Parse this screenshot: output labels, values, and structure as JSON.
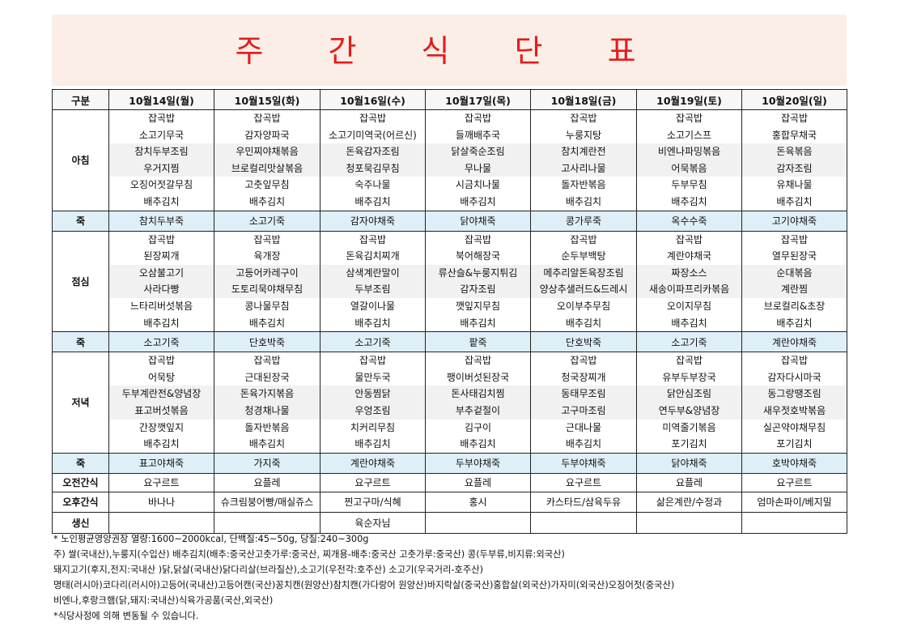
{
  "title": "주 간 식 단 표",
  "header": {
    "label": "구분",
    "days": [
      "10월14일(월)",
      "10월15일(화)",
      "10월16일(수)",
      "10월17일(목)",
      "10월18일(금)",
      "10월19일(토)",
      "10월20일(일)"
    ]
  },
  "breakfast": {
    "label": "아침",
    "days": [
      [
        "잡곡밥",
        "소고기무국",
        "참치두부조림",
        "우거지찜",
        "오징어젓갈무침",
        "배추김치"
      ],
      [
        "잡곡밥",
        "감자양파국",
        "우민찌야채볶음",
        "브로컬리맛살볶음",
        "고춧잎무침",
        "배추김치"
      ],
      [
        "잡곡밥",
        "소고기미역국(어르신)",
        "돈육감자조림",
        "청포묵김무침",
        "숙주나물",
        "배추김치"
      ],
      [
        "잡곡밥",
        "들깨배추국",
        "닭살죽순조림",
        "무나물",
        "시금치나물",
        "배추김치"
      ],
      [
        "잡곡밥",
        "누룽지탕",
        "참치계란전",
        "고사리나물",
        "돌자반볶음",
        "배추김치"
      ],
      [
        "잡곡밥",
        "소고기스프",
        "비엔나파밍볶음",
        "어묵볶음",
        "두부무침",
        "배추김치"
      ],
      [
        "잡곡밥",
        "홍합무채국",
        "돈육볶음",
        "감자조림",
        "유채나물",
        "배추김치"
      ]
    ]
  },
  "juk1": {
    "label": "죽",
    "days": [
      "참치두부죽",
      "소고기죽",
      "감자야채죽",
      "닭야채죽",
      "콩가루죽",
      "옥수수죽",
      "고기야채죽"
    ]
  },
  "lunch": {
    "label": "점심",
    "days": [
      [
        "잡곡밥",
        "된장찌개",
        "오삼불고기",
        "사라다빵",
        "느타리버섯볶음",
        "배추김치"
      ],
      [
        "잡곡밥",
        "육개장",
        "고등어카레구이",
        "도토리묵야채무침",
        "콩나물무침",
        "배추김치"
      ],
      [
        "잡곡밥",
        "돈육김치찌개",
        "삼색계란말이",
        "두부조림",
        "열갈이나물",
        "배추김치"
      ],
      [
        "잡곡밥",
        "북어해장국",
        "류산슬&누룽지튀김",
        "감자조림",
        "깻잎지무침",
        "배추김치"
      ],
      [
        "잡곡밥",
        "순두부백탕",
        "메추리알돈육장조림",
        "양상추샐러드&드레시",
        "오이부추무침",
        "배추김치"
      ],
      [
        "잡곡밥",
        "계란야채국",
        "짜장소스",
        "새송이파프리카볶음",
        "오이지무침",
        "배추김치"
      ],
      [
        "잡곡밥",
        "열무된장국",
        "순대볶음",
        "계란찜",
        "브로컬리&초장",
        "배추김치"
      ]
    ]
  },
  "juk2": {
    "label": "죽",
    "days": [
      "소고기죽",
      "단호박죽",
      "소고기죽",
      "팥죽",
      "단호박죽",
      "소고기죽",
      "계란야채죽"
    ]
  },
  "dinner": {
    "label": "저녁",
    "days": [
      [
        "잡곡밥",
        "어묵탕",
        "두부계란전&양념장",
        "표고버섯볶음",
        "간장깻잎지",
        "배추김치"
      ],
      [
        "잡곡밥",
        "근대된장국",
        "돈육가지볶음",
        "청경채나물",
        "돌자반볶음",
        "배추김치"
      ],
      [
        "잡곡밥",
        "물만두국",
        "안동찜닭",
        "우엉조림",
        "치커리무침",
        "배추김치"
      ],
      [
        "잡곡밥",
        "팽이버섯된장국",
        "돈사태김치찜",
        "부추겉절이",
        "김구이",
        "배추김치"
      ],
      [
        "잡곡밥",
        "청국장찌개",
        "동태무조림",
        "고구마조림",
        "근대나물",
        "배추김치"
      ],
      [
        "잡곡밥",
        "유부두부장국",
        "닭안심조림",
        "연두부&양념장",
        "미역줄기볶음",
        "포기김치"
      ],
      [
        "잡곡밥",
        "감자다시마국",
        "동그랑땡조림",
        "새우젓호박볶음",
        "실곤약야채무침",
        "포기김치"
      ]
    ]
  },
  "juk3": {
    "label": "죽",
    "days": [
      "표고야채죽",
      "가지죽",
      "계란야채죽",
      "두부야채죽",
      "두부야채죽",
      "닭야채죽",
      "호박야채죽"
    ]
  },
  "am_snack": {
    "label": "오전간식",
    "days": [
      "요구르트",
      "요플레",
      "요구르트",
      "요플레",
      "요구르트",
      "요플레",
      "요구르트"
    ]
  },
  "pm_snack": {
    "label": "오후간식",
    "days": [
      "바나나",
      "슈크림붕어빵/매실쥬스",
      "찐고구마/식혜",
      "홍시",
      "카스타드/삼육두유",
      "삶은계란/수정과",
      "엄마손파이/베지밀"
    ]
  },
  "birthday": {
    "label": "생신",
    "days": [
      "",
      "",
      "육순자님",
      "",
      "",
      "",
      ""
    ]
  },
  "notes": [
    "* 노인평균영양권장 열량:1600~2000kcal, 단백질:45~50g, 당질:240~300g",
    "주) 쌀(국내산),누룽지(수입산) 배추김치(배추:중국산고춧가루:중국산, 찌개용-배추:중국산 고춧가루:중국산) 콩(두부류,비지류:외국산)",
    "돼지고기(후지,전지:국내산 )닭,닭살(국내산)닭다리살(브라질산),소고기(우전각:호주산) 소고기(우국거리-호주산)",
    "명태(러시아)코다리(러시아)고등어(국내산)고등어캔(국산)꽁치캔(원양산)참치캔(가다랑어 원양산)바지락살(중국산)홍합살(외국산)가자미(외국산)오징어젓(중국산)",
    "비엔나,후랑크햄(닭,돼지:국내산)식육가공품(국산,외국산)",
    "*식당사정에 의해 변동될 수 있습니다."
  ]
}
